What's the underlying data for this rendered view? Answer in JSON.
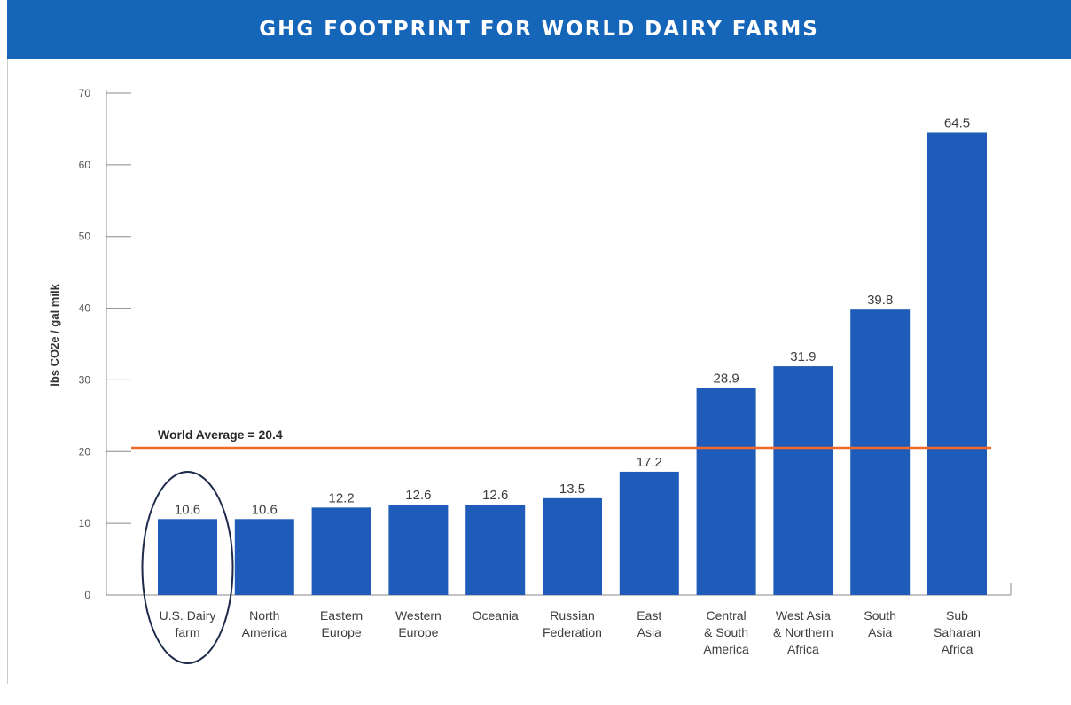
{
  "header": {
    "title": "GHG FOOTPRINT FOR WORLD DAIRY FARMS"
  },
  "chart_data": {
    "type": "bar",
    "title": "GHG FOOTPRINT FOR WORLD DAIRY FARMS",
    "ylabel": "lbs CO2e / gal milk",
    "xlabel": "",
    "ylim": [
      0,
      70
    ],
    "yticks": [
      0,
      10,
      20,
      30,
      40,
      50,
      60,
      70
    ],
    "grid": false,
    "categories": [
      [
        "U.S. Dairy",
        "farm"
      ],
      [
        "North",
        "America"
      ],
      [
        "Eastern",
        "Europe"
      ],
      [
        "Western",
        "Europe"
      ],
      [
        "Oceania"
      ],
      [
        "Russian",
        "Federation"
      ],
      [
        "East",
        "Asia"
      ],
      [
        "Central",
        "& South",
        "America"
      ],
      [
        "West Asia",
        "& Northern",
        "Africa"
      ],
      [
        "South",
        "Asia"
      ],
      [
        "Sub",
        "Saharan",
        "Africa"
      ]
    ],
    "values": [
      10.6,
      10.6,
      12.2,
      12.6,
      12.6,
      13.5,
      17.2,
      28.9,
      31.9,
      39.8,
      64.5
    ],
    "value_labels": [
      "10.6",
      "10.6",
      "12.2",
      "12.6",
      "12.6",
      "13.5",
      "17.2",
      "28.9",
      "31.9",
      "39.8",
      "64.5"
    ],
    "reference_line": {
      "value": 20.4,
      "label": "World Average = 20.4",
      "color": "#f26a2a"
    },
    "highlight": {
      "category_index": 0,
      "shape": "ellipse-outline",
      "color": "#1d2a4a"
    },
    "colors": {
      "bar": "#1f5bb8",
      "axis": "#8a8a8a"
    }
  }
}
